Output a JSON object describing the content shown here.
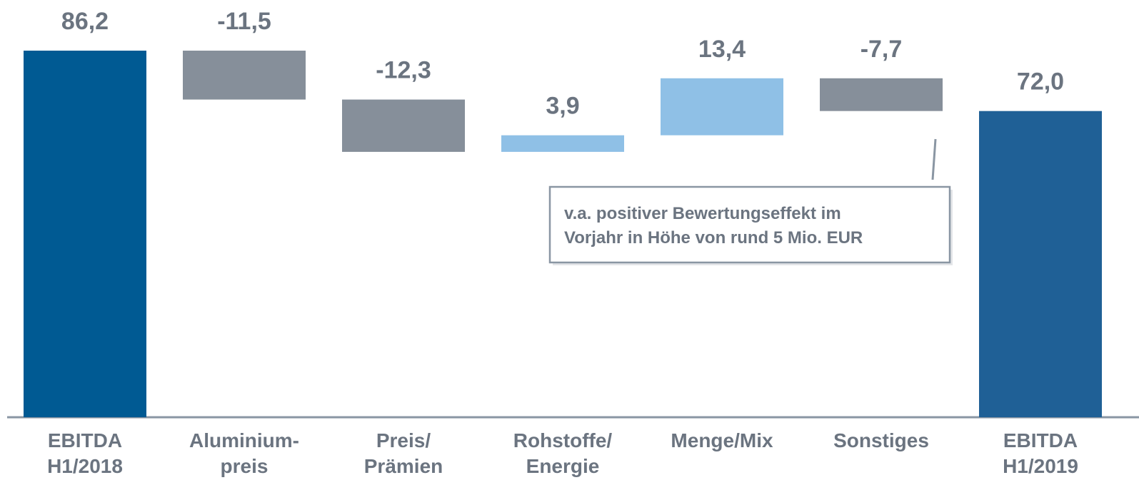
{
  "chart_data": {
    "type": "waterfall",
    "categories": [
      "EBITDA\nH1/2018",
      "Aluminium-\npreis",
      "Preis/\nPrämien",
      "Rohstoffe/\nEnergie",
      "Menge/Mix",
      "Sonstiges",
      "EBITDA\nH1/2019"
    ],
    "values": [
      86.2,
      -11.5,
      -12.3,
      3.9,
      13.4,
      -7.7,
      72.0
    ],
    "value_labels": [
      "86,2",
      "-11,5",
      "-12,3",
      "3,9",
      "13,4",
      "-7,7",
      "72,0"
    ],
    "colors": {
      "start": "#005a93",
      "end": "#1f6096",
      "increase": "#8fc0e6",
      "decrease": "#868f9a"
    },
    "annotation": "v.a. positiver Bewertungseffekt im\nVorjahr in Höhe von rund 5 Mio. EUR"
  }
}
